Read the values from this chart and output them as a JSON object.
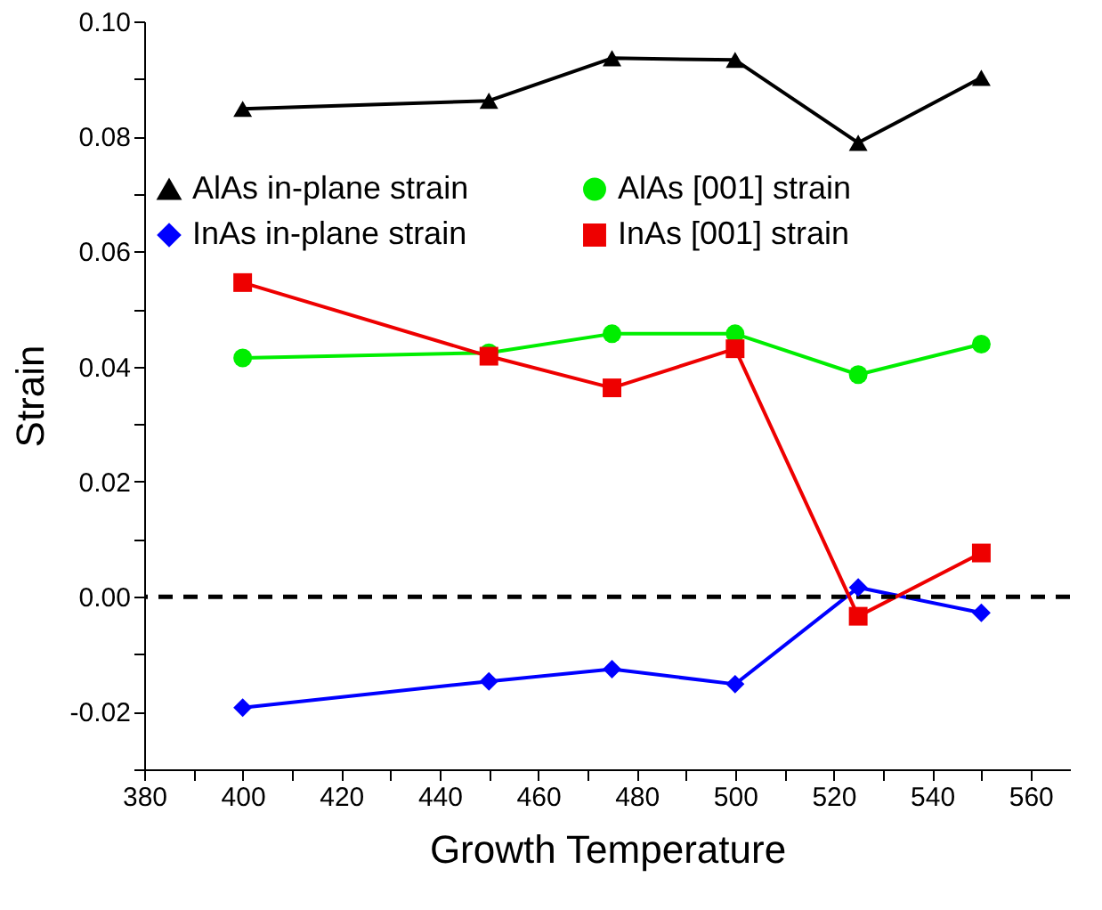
{
  "chart_data": {
    "type": "line",
    "xlabel": "Growth Temperature",
    "ylabel": "Strain",
    "x": [
      400,
      450,
      475,
      500,
      525,
      550
    ],
    "series": [
      {
        "name": "AlAs in-plane strain",
        "color": "#000000",
        "marker": "triangle",
        "values": [
          0.0848,
          0.0862,
          0.0936,
          0.0933,
          0.0789,
          0.0902
        ]
      },
      {
        "name": "InAs in-plane strain",
        "color": "#0000ff",
        "marker": "diamond",
        "values": [
          -0.0193,
          -0.0147,
          -0.0126,
          -0.0152,
          0.0016,
          -0.0028
        ]
      },
      {
        "name": "AlAs [001] strain",
        "color": "#00ee00",
        "marker": "circle",
        "values": [
          0.0415,
          0.0424,
          0.0457,
          0.0457,
          0.0386,
          0.0439
        ]
      },
      {
        "name": "InAs [001] strain",
        "color": "#ee0000",
        "marker": "square",
        "values": [
          0.0546,
          0.0418,
          0.0363,
          0.0431,
          -0.0034,
          0.0076
        ]
      }
    ],
    "xlim": [
      380,
      568
    ],
    "xticks": [
      380,
      {
        "value": 390,
        "label": null
      },
      400,
      {
        "value": 410,
        "label": null
      },
      420,
      {
        "value": 430,
        "label": null
      },
      440,
      {
        "value": 450,
        "label": null
      },
      460,
      {
        "value": 470,
        "label": null
      },
      480,
      {
        "value": 490,
        "label": null
      },
      500,
      {
        "value": 510,
        "label": null
      },
      520,
      {
        "value": 530,
        "label": null
      },
      540,
      {
        "value": 550,
        "label": null
      },
      560
    ],
    "ylim": [
      -0.03,
      0.1
    ],
    "yticks": [
      {
        "value": -0.03,
        "label": null
      },
      {
        "value": -0.02,
        "label": "-0.02"
      },
      {
        "value": -0.01,
        "label": null
      },
      {
        "value": 0,
        "label": "0.00"
      },
      {
        "value": 0.01,
        "label": null
      },
      {
        "value": 0.02,
        "label": "0.02"
      },
      {
        "value": 0.03,
        "label": null
      },
      {
        "value": 0.04,
        "label": "0.04"
      },
      {
        "value": 0.05,
        "label": null
      },
      {
        "value": 0.06,
        "label": "0.06"
      },
      {
        "value": 0.07,
        "label": null
      },
      {
        "value": 0.08,
        "label": "0.08"
      },
      {
        "value": 0.09,
        "label": null
      },
      {
        "value": 0.1,
        "label": "0.10"
      }
    ],
    "ref_lines": [
      {
        "axis": "y",
        "value": 0,
        "color": "#000000",
        "line_style": "dashed"
      }
    ],
    "legend": "top",
    "grid": false,
    "line_style": "solid"
  }
}
